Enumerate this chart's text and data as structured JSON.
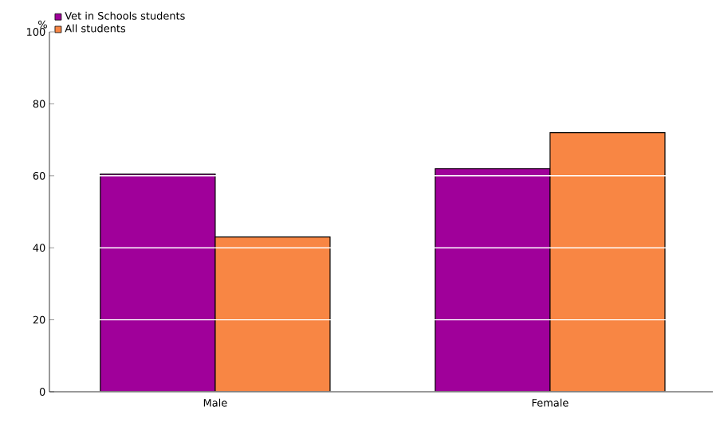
{
  "chart_data": {
    "type": "bar",
    "ylabel": "%",
    "categories": [
      "Male",
      "Female"
    ],
    "series": [
      {
        "name": "Vet in Schools students",
        "color": "#a0009a",
        "values": [
          60.5,
          62
        ]
      },
      {
        "name": "All students",
        "color": "#f88644",
        "values": [
          43,
          72
        ]
      }
    ],
    "ylim": [
      0,
      100
    ],
    "yticks": [
      0,
      20,
      40,
      60,
      80,
      100
    ],
    "grid": "y",
    "legend": "top left"
  }
}
